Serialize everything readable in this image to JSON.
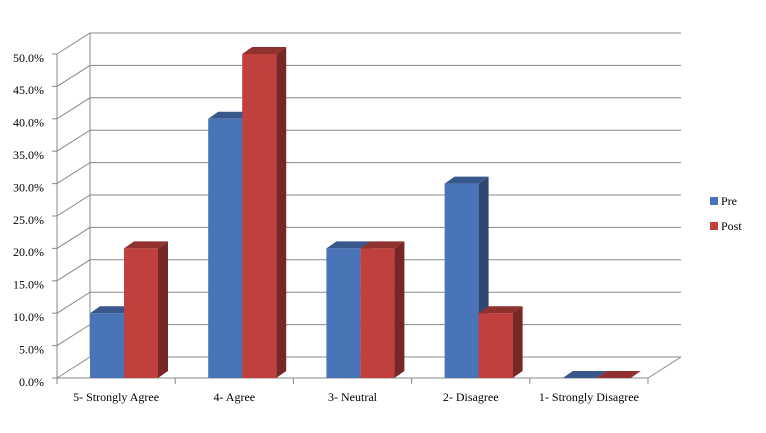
{
  "chart_data": {
    "type": "bar3d",
    "categories": [
      "5- Strongly Agree",
      "4- Agree",
      "3- Neutral",
      "2- Disagree",
      "1- Strongly Disagree"
    ],
    "series": [
      {
        "name": "Pre",
        "color": "#4a74b8",
        "values": [
          10,
          40,
          20,
          30,
          0
        ]
      },
      {
        "name": "Post",
        "color": "#c0403e",
        "values": [
          20,
          50,
          20,
          10,
          0
        ]
      }
    ],
    "ylim": [
      0,
      50
    ],
    "yticks": [
      {
        "value": 0,
        "label": "0.0%"
      },
      {
        "value": 5,
        "label": "5.0%"
      },
      {
        "value": 10,
        "label": "10.0%"
      },
      {
        "value": 15,
        "label": "15.0%"
      },
      {
        "value": 20,
        "label": "20.0%"
      },
      {
        "value": 25,
        "label": "25.0%"
      },
      {
        "value": 30,
        "label": "30.0%"
      },
      {
        "value": 35,
        "label": "35.0%"
      },
      {
        "value": 40,
        "label": "40.0%"
      },
      {
        "value": 45,
        "label": "45.0%"
      },
      {
        "value": 50,
        "label": "50.0%"
      }
    ],
    "grid": true,
    "legend": "right"
  }
}
